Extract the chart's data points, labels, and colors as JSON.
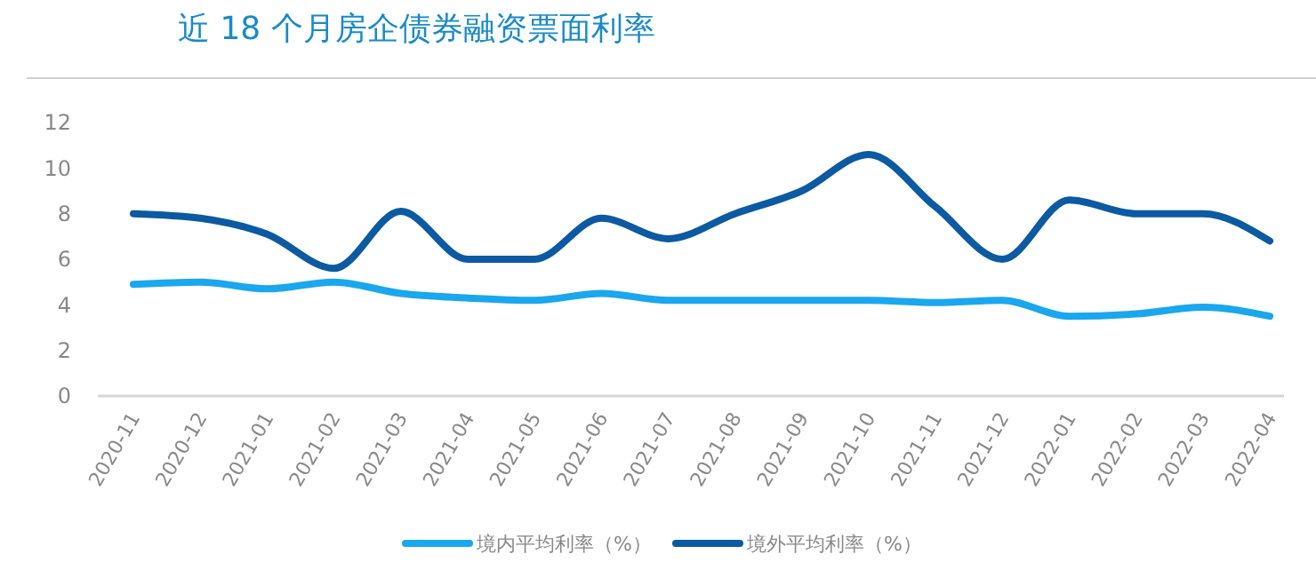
{
  "chart_data": {
    "type": "line",
    "title": "近 18 个月房企债券融资票面利率",
    "categories": [
      "2020-11",
      "2020-12",
      "2021-01",
      "2021-02",
      "2021-03",
      "2021-04",
      "2021-05",
      "2021-06",
      "2021-07",
      "2021-08",
      "2021-09",
      "2021-10",
      "2021-11",
      "2021-12",
      "2022-01",
      "2022-02",
      "2022-03",
      "2022-04"
    ],
    "series": [
      {
        "name": "境内平均利率（%）",
        "color": "#1aa7ee",
        "values": [
          4.9,
          5.0,
          4.7,
          5.0,
          4.5,
          4.3,
          4.2,
          4.5,
          4.2,
          4.2,
          4.2,
          4.2,
          4.1,
          4.2,
          3.5,
          3.6,
          3.9,
          3.5
        ]
      },
      {
        "name": "境外平均利率（%）",
        "color": "#0b5aa2",
        "values": [
          8.0,
          7.8,
          7.1,
          5.6,
          8.1,
          6.0,
          6.0,
          7.8,
          6.9,
          8.0,
          9.0,
          10.6,
          8.3,
          6.0,
          8.6,
          8.0,
          8.0,
          6.8
        ]
      }
    ],
    "ylim": [
      0,
      12
    ],
    "yticks": [
      0,
      2,
      4,
      6,
      8,
      10,
      12
    ],
    "grid": false,
    "legend": "bottom",
    "marker": "none",
    "line_style": "solid"
  }
}
